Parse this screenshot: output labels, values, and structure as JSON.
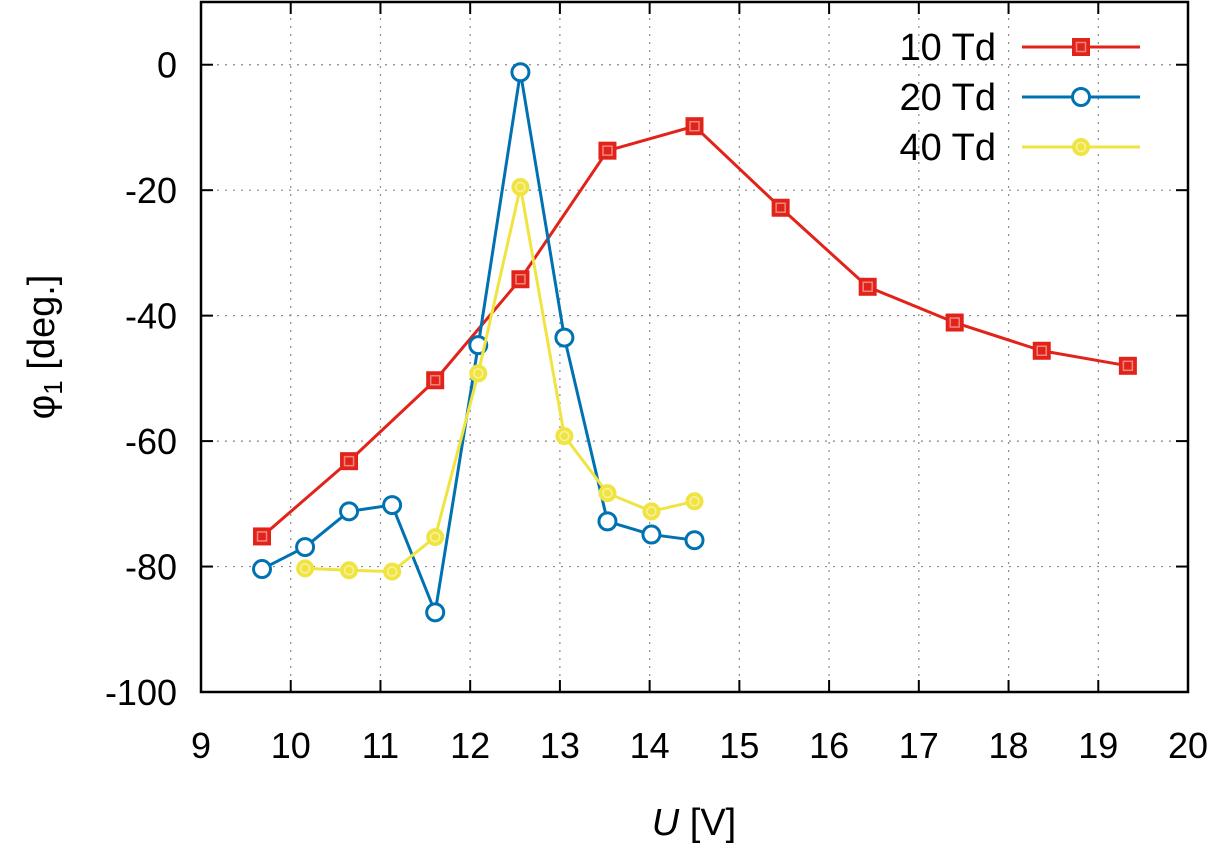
{
  "chart_data": {
    "type": "line",
    "xlabel_var": "U",
    "xlabel_unit": " [V]",
    "ylabel_sym": "φ",
    "ylabel_sub": "1",
    "ylabel_unit": " [deg.]",
    "xlim": [
      9,
      20
    ],
    "ylim": [
      -100,
      10
    ],
    "xticks": [
      9,
      10,
      11,
      12,
      13,
      14,
      15,
      16,
      17,
      18,
      19,
      20
    ],
    "yticks": [
      0,
      -20,
      -40,
      -60,
      -80,
      -100
    ],
    "grid": true,
    "legend_position": "top-right",
    "series": [
      {
        "name": "10 Td",
        "color": "#e2231a",
        "marker": "square",
        "x": [
          9.68,
          10.65,
          11.61,
          12.56,
          13.53,
          14.5,
          15.46,
          16.43,
          17.4,
          18.37,
          19.33
        ],
        "y": [
          -75.2,
          -63.2,
          -50.3,
          -34.2,
          -13.7,
          -9.8,
          -22.8,
          -35.4,
          -41.1,
          -45.6,
          -48
        ]
      },
      {
        "name": "20 Td",
        "color": "#0072b2",
        "marker": "circle-open",
        "x": [
          9.68,
          10.16,
          10.65,
          11.13,
          11.61,
          12.09,
          12.56,
          13.05,
          13.53,
          14.02,
          14.5
        ],
        "y": [
          -80.4,
          -76.9,
          -71.2,
          -70.2,
          -87.3,
          -44.7,
          -1.2,
          -43.5,
          -72.8,
          -74.9,
          -75.8
        ]
      },
      {
        "name": "40 Td",
        "color": "#f0e442",
        "marker": "circle-filled",
        "x": [
          10.16,
          10.65,
          11.13,
          11.61,
          12.09,
          12.56,
          13.05,
          13.53,
          14.02,
          14.5
        ],
        "y": [
          -80.3,
          -80.6,
          -80.8,
          -75.3,
          -49.2,
          -19.5,
          -59.2,
          -68.3,
          -71.2,
          -69.6
        ]
      }
    ]
  }
}
